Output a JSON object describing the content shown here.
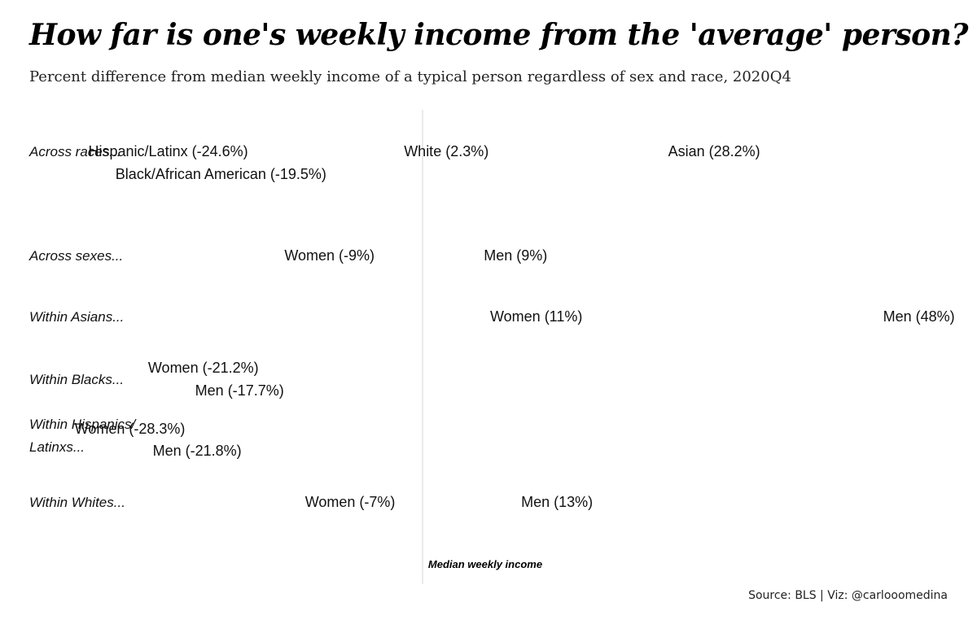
{
  "header": {
    "title": "How far is one's weekly income from the 'average' person?",
    "subtitle": "Percent difference from median weekly income of a typical person regardless of sex and race, 2020Q4"
  },
  "source": "Source: BLS | Viz: @carlooomedina",
  "chart_data": {
    "type": "scatter",
    "title": "How far is one's weekly income from the 'average' person?",
    "subtitle": "Percent difference from median weekly income of a typical person regardless of sex and race, 2020Q4",
    "xlabel": "Median weekly income",
    "reference_line": 0,
    "xlim": [
      -30,
      50
    ],
    "grid": false,
    "groups": [
      {
        "name": "Across races...",
        "points": [
          {
            "label": "Hispanic/Latinx (-24.6%)",
            "value": -24.6
          },
          {
            "label": "Black/African American (-19.5%)",
            "value": -19.5
          },
          {
            "label": "White (2.3%)",
            "value": 2.3
          },
          {
            "label": "Asian (28.2%)",
            "value": 28.2
          }
        ]
      },
      {
        "name": "Across sexes...",
        "points": [
          {
            "label": "Women (-9%)",
            "value": -9
          },
          {
            "label": "Men (9%)",
            "value": 9
          }
        ]
      },
      {
        "name": "Within Asians...",
        "points": [
          {
            "label": "Women (11%)",
            "value": 11
          },
          {
            "label": "Men (48%)",
            "value": 48
          }
        ]
      },
      {
        "name": "Within Blacks...",
        "points": [
          {
            "label": "Women (-21.2%)",
            "value": -21.2
          },
          {
            "label": "Men (-17.7%)",
            "value": -17.7
          }
        ]
      },
      {
        "name": "Within Hispanics/ Latinxs...",
        "points": [
          {
            "label": "Women (-28.3%)",
            "value": -28.3
          },
          {
            "label": "Men (-21.8%)",
            "value": -21.8
          }
        ]
      },
      {
        "name": "Within Whites...",
        "points": [
          {
            "label": "Women (-7%)",
            "value": -7
          },
          {
            "label": "Men (13%)",
            "value": 13
          }
        ]
      }
    ]
  }
}
